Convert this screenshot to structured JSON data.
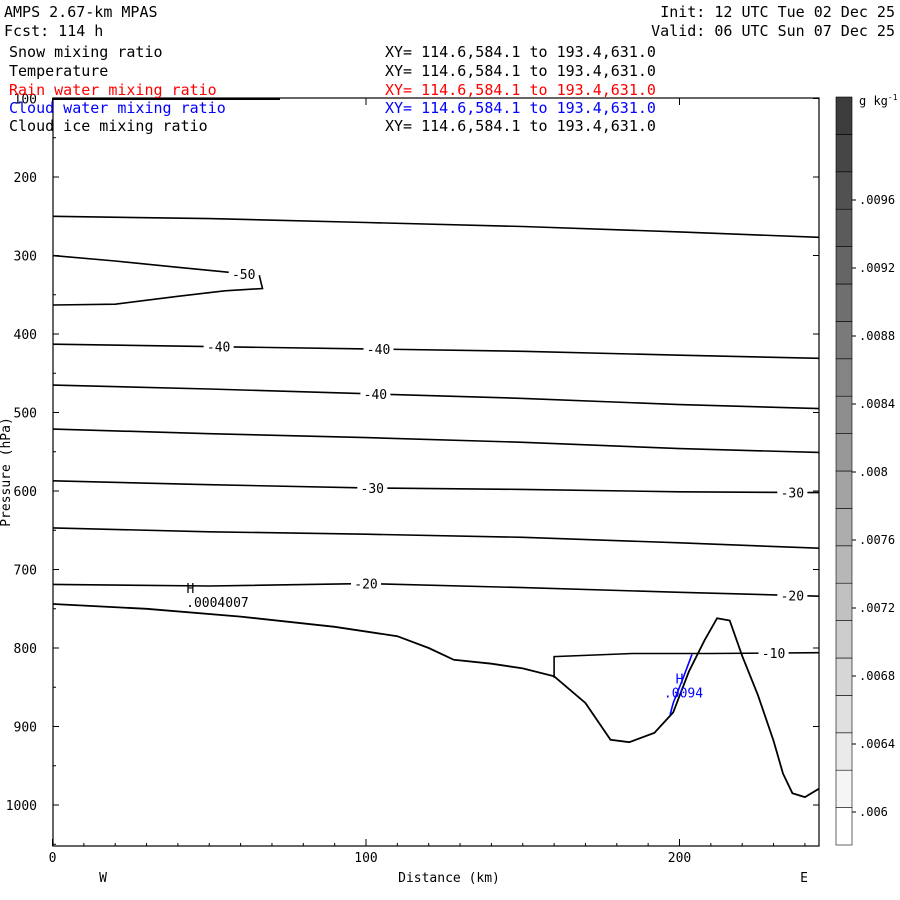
{
  "header": {
    "model": "AMPS 2.67-km MPAS",
    "forecast": "Fcst:  114 h",
    "init": "Init: 12 UTC Tue 02 Dec 25",
    "valid": "Valid: 06 UTC Sun 07 Dec 25"
  },
  "fields": [
    {
      "name": "Snow mixing ratio",
      "xy": "XY= 114.6,584.1 to 193.4,631.0",
      "color": "#000000"
    },
    {
      "name": "Temperature",
      "xy": "XY= 114.6,584.1 to 193.4,631.0",
      "color": "#000000"
    },
    {
      "name": "Rain water mixing ratio",
      "xy": "XY= 114.6,584.1 to 193.4,631.0",
      "color": "#ff0000"
    },
    {
      "name": "Cloud water mixing ratio",
      "xy": "XY= 114.6,584.1 to 193.4,631.0",
      "color": "#0000ff"
    },
    {
      "name": "Cloud ice mixing ratio",
      "xy": "XY= 114.6,584.1 to 193.4,631.0",
      "color": "#000000"
    }
  ],
  "axes": {
    "ylabel": "Pressure (hPa)",
    "xlabel": "Distance (km)",
    "west": "W",
    "east": "E",
    "y_ticks": [
      "100",
      "200",
      "300",
      "400",
      "500",
      "600",
      "700",
      "800",
      "900",
      "1000"
    ],
    "x_ticks": [
      "0",
      "100",
      "200"
    ]
  },
  "colorbar": {
    "unit": "g kg",
    "unit_exp": "-1",
    "ticks": [
      ".0096",
      ".0092",
      ".0088",
      ".0084",
      ".008",
      ".0076",
      ".0072",
      ".0068",
      ".0064",
      ".006"
    ]
  },
  "chart_data": {
    "type": "line",
    "title": "",
    "xlabel": "Distance (km)",
    "ylabel": "Pressure (hPa)",
    "xlim": [
      0,
      245
    ],
    "ylim": [
      1050,
      100
    ],
    "grid": false,
    "temperature_contours": [
      {
        "label": "-50",
        "points": [
          [
            0,
            300
          ],
          [
            20,
            307
          ],
          [
            40,
            315
          ],
          [
            58,
            322
          ],
          [
            66,
            326
          ],
          [
            67,
            342
          ],
          [
            55,
            345
          ],
          [
            40,
            352
          ],
          [
            20,
            362
          ],
          [
            0,
            363
          ]
        ]
      },
      {
        "label": "",
        "points": [
          [
            0,
            250
          ],
          [
            50,
            253
          ],
          [
            100,
            258
          ],
          [
            150,
            263
          ],
          [
            200,
            270
          ],
          [
            245,
            277
          ]
        ]
      },
      {
        "label": "-40",
        "points": [
          [
            0,
            413
          ],
          [
            50,
            416
          ],
          [
            100,
            419
          ],
          [
            150,
            422
          ],
          [
            200,
            427
          ],
          [
            245,
            431
          ]
        ]
      },
      {
        "label": "-40",
        "points": [
          [
            0,
            465
          ],
          [
            50,
            470
          ],
          [
            100,
            476
          ],
          [
            150,
            482
          ],
          [
            200,
            490
          ],
          [
            245,
            495
          ]
        ]
      },
      {
        "label": "",
        "points": [
          [
            0,
            521
          ],
          [
            50,
            527
          ],
          [
            100,
            532
          ],
          [
            150,
            538
          ],
          [
            200,
            546
          ],
          [
            245,
            551
          ]
        ]
      },
      {
        "label": "-30",
        "points": [
          [
            0,
            587
          ],
          [
            50,
            592
          ],
          [
            100,
            596
          ],
          [
            150,
            598
          ],
          [
            200,
            601
          ],
          [
            245,
            602
          ]
        ]
      },
      {
        "label": "",
        "points": [
          [
            0,
            647
          ],
          [
            50,
            652
          ],
          [
            100,
            655
          ],
          [
            150,
            659
          ],
          [
            200,
            666
          ],
          [
            245,
            673
          ]
        ]
      },
      {
        "label": "-20",
        "points": [
          [
            0,
            719
          ],
          [
            50,
            721
          ],
          [
            100,
            718
          ],
          [
            150,
            723
          ],
          [
            200,
            729
          ],
          [
            245,
            734
          ]
        ]
      },
      {
        "label": "-10",
        "points": [
          [
            160,
            838
          ],
          [
            160,
            811
          ],
          [
            185,
            807
          ],
          [
            210,
            807
          ],
          [
            245,
            806
          ]
        ]
      }
    ],
    "terrain_pressure_hpa": {
      "x": [
        0,
        30,
        60,
        90,
        110,
        120,
        128,
        140,
        150,
        160,
        170,
        178,
        184,
        192,
        198,
        203,
        208,
        212,
        216,
        220,
        225,
        230,
        233,
        236,
        240,
        245
      ],
      "p": [
        744,
        750,
        760,
        773,
        785,
        800,
        815,
        820,
        826,
        836,
        870,
        917,
        920,
        908,
        882,
        830,
        790,
        762,
        765,
        810,
        860,
        918,
        960,
        985,
        990,
        978
      ]
    },
    "maxima": [
      {
        "field": "Cloud ice mixing ratio",
        "marker": "H",
        "label": ".0004007",
        "x": 44,
        "p": 730
      },
      {
        "field": "Cloud water mixing ratio",
        "marker": "H",
        "label": ".0094",
        "x": 200,
        "p": 845
      }
    ],
    "cloud_water_contour": {
      "points": [
        [
          204,
          808
        ],
        [
          201,
          840
        ],
        [
          198,
          870
        ],
        [
          197,
          885
        ]
      ]
    },
    "colorbar": {
      "field": "Snow mixing ratio",
      "unit": "g kg^-1",
      "levels": [
        0.006,
        0.0062,
        0.0064,
        0.0066,
        0.0068,
        0.007,
        0.0072,
        0.0074,
        0.0076,
        0.0078,
        0.008,
        0.0082,
        0.0084,
        0.0086,
        0.0088,
        0.009,
        0.0092,
        0.0094,
        0.0096,
        0.0098
      ]
    }
  }
}
